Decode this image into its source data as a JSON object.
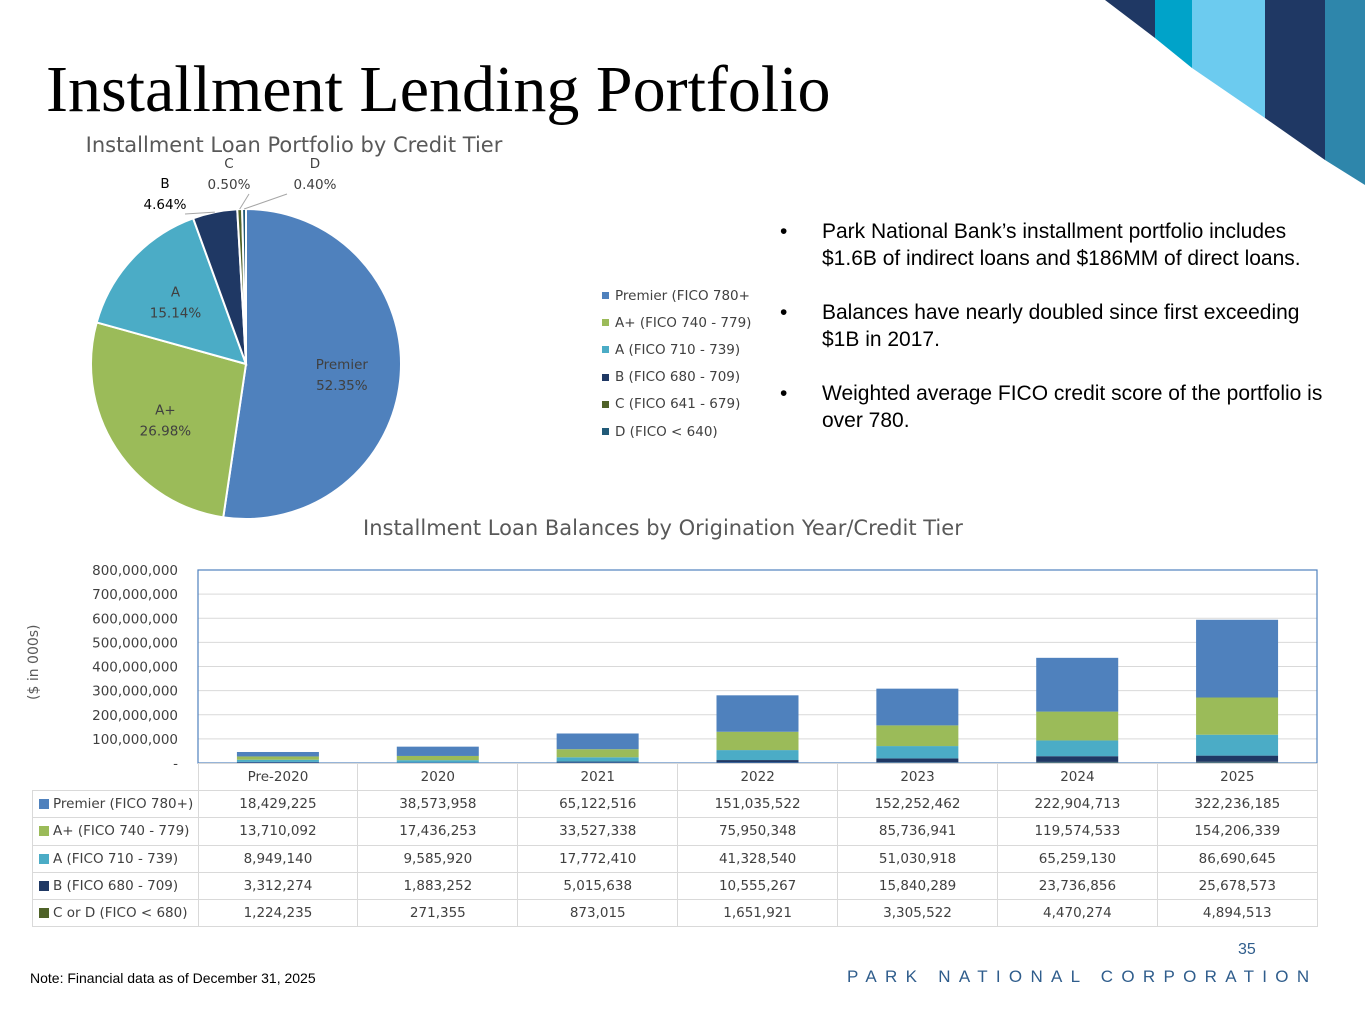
{
  "page": {
    "title": "Installment Lending Portfolio",
    "note": "Note: Financial data as of December 31, 2025",
    "page_number": "35",
    "corporation": "PARK NATIONAL CORPORATION"
  },
  "colors": {
    "premier": "#4f81bd",
    "aplus": "#9bbb59",
    "a": "#4bacc6",
    "b": "#1f3864",
    "c": "#4f6228",
    "d": "#215a78",
    "navy": "#1f3864",
    "teal": "#00a3c9",
    "light": "#6ccbef",
    "steel": "#2e86ab",
    "brand_text": "#2f5d8c"
  },
  "bullets": [
    "Park National Bank’s installment portfolio includes $1.6B of indirect loans and $186MM of direct loans.",
    "Balances have nearly doubled since first exceeding $1B in 2017.",
    "Weighted average FICO credit score of the portfolio is over 780."
  ],
  "chart_data": [
    {
      "type": "pie",
      "title": "Installment Loan Portfolio by Credit Tier",
      "labels": [
        "Premier",
        "A+",
        "A",
        "B",
        "C",
        "D"
      ],
      "values": [
        52.35,
        26.98,
        15.14,
        4.64,
        0.5,
        0.4
      ],
      "percent_labels": [
        "52.35%",
        "26.98%",
        "15.14%",
        "4.64%",
        "0.50%",
        "0.40%"
      ],
      "legend": [
        "Premier (FICO 780+",
        "A+ (FICO 740 - 779)",
        "A (FICO 710 - 739)",
        "B (FICO 680 - 709)",
        "C (FICO 641 - 679)",
        "D (FICO < 640)"
      ],
      "legend_position": "right",
      "colors": [
        "#4f81bd",
        "#9bbb59",
        "#4bacc6",
        "#1f3864",
        "#4f6228",
        "#215a78"
      ]
    },
    {
      "type": "bar",
      "stacked": true,
      "title": "Installment Loan Balances by Origination Year/Credit Tier",
      "ylabel": "($ in 000s)",
      "categories": [
        "Pre-2020",
        "2020",
        "2021",
        "2022",
        "2023",
        "2024",
        "2025"
      ],
      "ylim": [
        0,
        800000000
      ],
      "yticks": [
        0,
        100000000,
        200000000,
        300000000,
        400000000,
        500000000,
        600000000,
        700000000,
        800000000
      ],
      "ytick_labels": [
        "-",
        "100,000,000",
        "200,000,000",
        "300,000,000",
        "400,000,000",
        "500,000,000",
        "600,000,000",
        "700,000,000",
        "800,000,000"
      ],
      "series": [
        {
          "name": "C or D (FICO < 680)",
          "color": "#4f6228",
          "values": [
            1224235,
            271355,
            873015,
            1651921,
            3305522,
            4470274,
            4894513
          ],
          "labels": [
            "1,224,235",
            "271,355",
            "873,015",
            "1,651,921",
            "3,305,522",
            "4,470,274",
            "4,894,513"
          ]
        },
        {
          "name": "B (FICO 680 - 709)",
          "color": "#1f3864",
          "values": [
            3312274,
            1883252,
            5015638,
            10555267,
            15840289,
            23736856,
            25678573
          ],
          "labels": [
            "3,312,274",
            "1,883,252",
            "5,015,638",
            "10,555,267",
            "15,840,289",
            "23,736,856",
            "25,678,573"
          ]
        },
        {
          "name": "A (FICO 710 - 739)",
          "color": "#4bacc6",
          "values": [
            8949140,
            9585920,
            17772410,
            41328540,
            51030918,
            65259130,
            86690645
          ],
          "labels": [
            "8,949,140",
            "9,585,920",
            "17,772,410",
            "41,328,540",
            "51,030,918",
            "65,259,130",
            "86,690,645"
          ]
        },
        {
          "name": "A+ (FICO 740 - 779)",
          "color": "#9bbb59",
          "values": [
            13710092,
            17436253,
            33527338,
            75950348,
            85736941,
            119574533,
            154206339
          ],
          "labels": [
            "13,710,092",
            "17,436,253",
            "33,527,338",
            "75,950,348",
            "85,736,941",
            "119,574,533",
            "154,206,339"
          ]
        },
        {
          "name": "Premier (FICO 780+)",
          "color": "#4f81bd",
          "values": [
            18429225,
            38573958,
            65122516,
            151035522,
            152252462,
            222904713,
            322236185
          ],
          "labels": [
            "18,429,225",
            "38,573,958",
            "65,122,516",
            "151,035,522",
            "152,252,462",
            "222,904,713",
            "322,236,185"
          ]
        }
      ]
    }
  ]
}
